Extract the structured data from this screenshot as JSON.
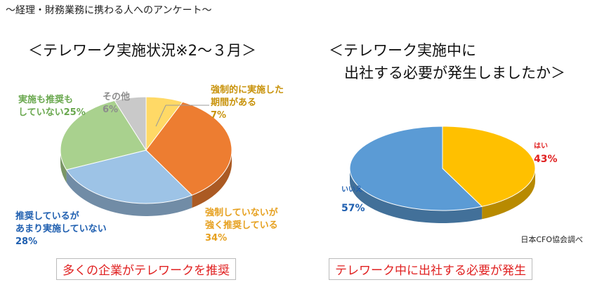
{
  "header": "～経理・財務業務に携わる人へのアンケート～",
  "source": "日本CFO協会調べ",
  "banners": {
    "left": "多くの企業がテレワークを推奨",
    "right": "テレワーク中に出社する必要が発生"
  },
  "chart_data": [
    {
      "type": "pie",
      "title": "＜テレワーク実施状況※2～３月＞",
      "slices": [
        {
          "label": "強制的に実施した期間がある",
          "value": 7,
          "color": "#ffd966"
        },
        {
          "label": "強制していないが強く推奨している",
          "value": 34,
          "color": "#ed7d31"
        },
        {
          "label": "推奨しているがあまり実施していない",
          "value": 28,
          "color": "#9dc3e6"
        },
        {
          "label": "実施も推奨もしていない",
          "value": 25,
          "color": "#a9d18e"
        },
        {
          "label": "その他",
          "value": 6,
          "color": "#c9c9c9"
        }
      ],
      "labels": {
        "forced": {
          "line1": "強制的に実施した",
          "line2": "期間がある",
          "pct": "7%"
        },
        "strong": {
          "line1": "強制していないが",
          "line2": "強く推奨している",
          "pct": "34%"
        },
        "rec": {
          "line1": "推奨しているが",
          "line2": "あまり実施していない",
          "pct": "28%"
        },
        "none": {
          "line1": "実施も推奨も",
          "line2": "していない25%"
        },
        "other": {
          "line1": "その他",
          "line2": "6%"
        }
      }
    },
    {
      "type": "pie",
      "title_line1": "＜テレワーク実施中に",
      "title_line2": "出社する必要が発生しましたか＞",
      "slices": [
        {
          "label": "はい",
          "value": 43,
          "color": "#ffc000"
        },
        {
          "label": "いいえ",
          "value": 57,
          "color": "#5b9bd5"
        }
      ],
      "labels": {
        "yes": {
          "word": "はい",
          "pct": "43%"
        },
        "no": {
          "word": "いいえ",
          "pct": "57%"
        }
      }
    }
  ]
}
